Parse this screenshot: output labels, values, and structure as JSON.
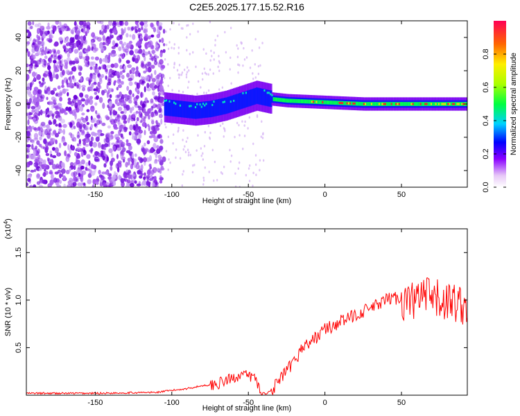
{
  "title": "C2E5.2025.177.15.52.R16",
  "chart_data": [
    {
      "type": "heatmap",
      "name": "spectrogram",
      "xlabel": "Height of straight line (km)",
      "ylabel": "Frequency (Hz)",
      "xlim": [
        -195,
        93
      ],
      "ylim": [
        -50,
        50
      ],
      "x_ticks": [
        -150,
        -100,
        -50,
        0,
        50
      ],
      "y_ticks": [
        -40,
        -20,
        0,
        20,
        40
      ],
      "colorbar": {
        "label": "Normalized spectral amplitude",
        "range": [
          0,
          1
        ],
        "ticks": [
          0.0,
          0.2,
          0.4,
          0.6,
          0.8
        ]
      },
      "ridge": {
        "x": [
          -105,
          -95,
          -85,
          -75,
          -65,
          -55,
          -45,
          -35,
          -25,
          0,
          25,
          50,
          75,
          93
        ],
        "y": [
          -2,
          -3,
          -4,
          -3,
          -1,
          2,
          5,
          3,
          2,
          1,
          0,
          0,
          0,
          0
        ]
      }
    },
    {
      "type": "line",
      "name": "snr",
      "xlabel": "Height of straight line (km)",
      "ylabel": "SNR (10 * v/v)",
      "y_multiplier": "(x10",
      "y_multiplier_exp": "4",
      "y_multiplier_close": ")",
      "xlim": [
        -195,
        93
      ],
      "ylim": [
        0,
        1.75
      ],
      "x_ticks": [
        -150,
        -100,
        -50,
        0,
        50
      ],
      "y_ticks": [
        0.5,
        1.0,
        1.5
      ],
      "y_tick_labels": [
        "0.5",
        "1.0",
        "1.5"
      ],
      "color": "#ff0000",
      "x": [
        -195,
        -150,
        -110,
        -100,
        -90,
        -80,
        -70,
        -60,
        -55,
        -50,
        -45,
        -42,
        -38,
        -35,
        -30,
        -25,
        -20,
        -15,
        -10,
        -5,
        0,
        5,
        10,
        15,
        20,
        25,
        30,
        35,
        40,
        45,
        50,
        55,
        60,
        65,
        70,
        75,
        80,
        85,
        90,
        93
      ],
      "y": [
        0.02,
        0.02,
        0.03,
        0.05,
        0.07,
        0.1,
        0.12,
        0.18,
        0.22,
        0.2,
        0.18,
        0.02,
        0.02,
        0.05,
        0.15,
        0.25,
        0.35,
        0.5,
        0.55,
        0.62,
        0.7,
        0.72,
        0.78,
        0.8,
        0.85,
        0.88,
        0.92,
        0.95,
        1.0,
        1.03,
        1.0,
        0.98,
        1.0,
        1.05,
        1.0,
        1.0,
        0.98,
        0.98,
        0.95,
        0.95
      ]
    }
  ]
}
